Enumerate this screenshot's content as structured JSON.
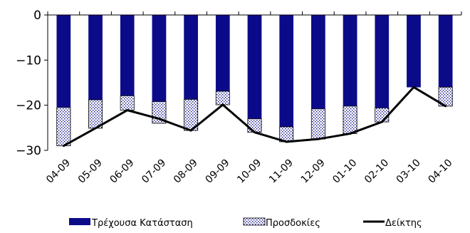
{
  "colors": {
    "current": "#0b0b8a",
    "expectations_fill": "#ffffff",
    "expectations_dots": "#0b0b8a",
    "index_line": "#000000",
    "axis": "#000000"
  },
  "chart_data": {
    "type": "bar",
    "stacked": true,
    "categories": [
      "04-09",
      "05-09",
      "06-09",
      "07-09",
      "08-09",
      "09-09",
      "10-09",
      "11-09",
      "12-09",
      "01-10",
      "02-10",
      "03-10",
      "04-10"
    ],
    "ylim": [
      -30,
      0
    ],
    "yticks": [
      0,
      -10,
      -20,
      -30
    ],
    "ytick_labels": [
      "0",
      "−10",
      "−20",
      "−30"
    ],
    "grid": false,
    "legend_position": "bottom",
    "series": [
      {
        "name": "Τρέχουσα Κατάσταση",
        "kind": "bar",
        "values": [
          -20.5,
          -18.8,
          -17.9,
          -19.2,
          -18.7,
          -16.9,
          -23.0,
          -24.8,
          -20.8,
          -20.2,
          -20.6,
          -16.0,
          -16.0
        ]
      },
      {
        "name": "Προσδοκίες",
        "kind": "bar",
        "values": [
          -8.5,
          -6.3,
          -3.2,
          -4.8,
          -6.9,
          -3.0,
          -3.0,
          -3.3,
          -6.7,
          -6.1,
          -3.1,
          0.0,
          -4.2
        ]
      },
      {
        "name": "Δείκτης",
        "kind": "line",
        "values": [
          -29.0,
          -25.1,
          -21.1,
          -23.0,
          -25.6,
          -19.9,
          -26.0,
          -28.1,
          -27.5,
          -26.3,
          -23.7,
          -16.0,
          -20.2
        ]
      }
    ]
  }
}
